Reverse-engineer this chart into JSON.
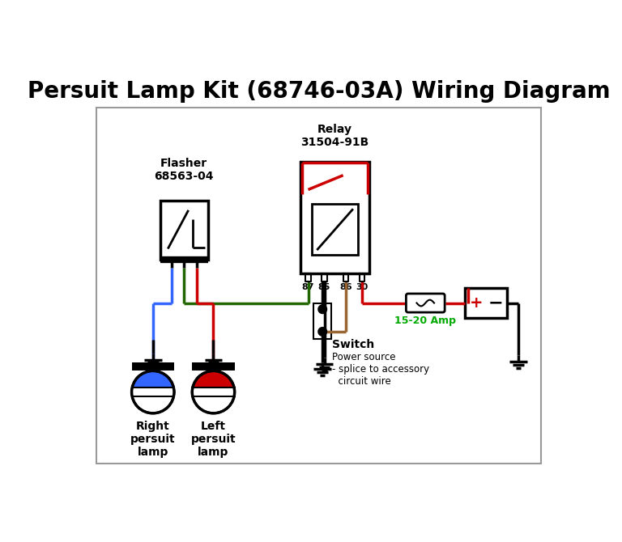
{
  "title": "Persuit Lamp Kit (68746-03A) Wiring Diagram",
  "title_fontsize": 20,
  "bg_color": "#ffffff",
  "colors": {
    "red": "#cc0000",
    "blue": "#3366ff",
    "green": "#226600",
    "brown": "#996633",
    "black": "#000000",
    "green_label": "#00aa00",
    "gray_border": "#999999"
  },
  "labels": {
    "relay": "Relay\n31504-91B",
    "flasher": "Flasher\n68563-04",
    "fuse": "15-20 Amp",
    "switch": "Switch",
    "power": "Power source\n- splice to accessory\n  circuit wire",
    "right_lamp": "Right\npersuit\nlamp",
    "left_lamp": "Left\npersuit\nlamp",
    "pin87": "87",
    "pin85": "85",
    "pin86": "86",
    "pin30": "30"
  }
}
